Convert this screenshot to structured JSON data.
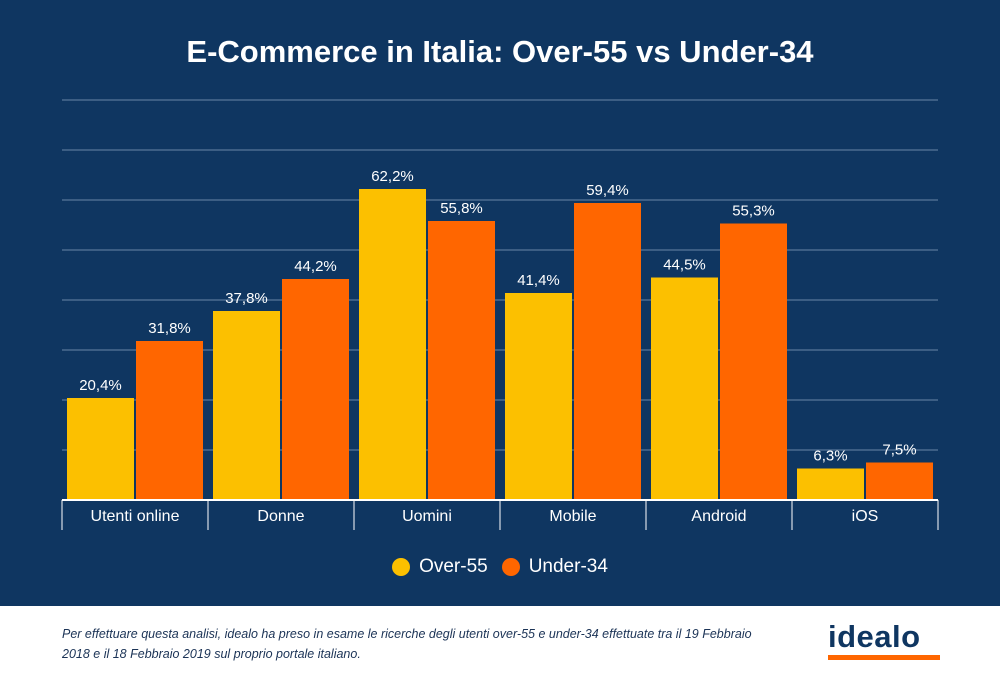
{
  "title": "E-Commerce in Italia: Over-55 vs Under-34",
  "chart_data": {
    "type": "bar",
    "title": "E-Commerce in Italia: Over-55 vs Under-34",
    "categories": [
      "Utenti online",
      "Donne",
      "Uomini",
      "Mobile",
      "Android",
      "iOS"
    ],
    "series": [
      {
        "name": "Over-55",
        "values": [
          20.4,
          37.8,
          62.2,
          41.4,
          44.5,
          6.3
        ],
        "labels": [
          "20,4%",
          "37,8%",
          "62,2%",
          "41,4%",
          "44,5%",
          "6,3%"
        ],
        "color": "#fcc000"
      },
      {
        "name": "Under-34",
        "values": [
          31.8,
          44.2,
          55.8,
          59.4,
          55.3,
          7.5
        ],
        "labels": [
          "31,8%",
          "44,2%",
          "55,8%",
          "59,4%",
          "55,3%",
          "7,5%"
        ],
        "color": "#ff6600"
      }
    ],
    "ylim": [
      0,
      80
    ],
    "y_gridlines": [
      10,
      20,
      30,
      40,
      50,
      60,
      70,
      80
    ],
    "grid": true,
    "y_tick_labels": false,
    "legend_placement": "bottom-center",
    "xlabel": "",
    "ylabel": ""
  },
  "colors": {
    "background": "#0f3661",
    "gridline": "#6a86a6",
    "axis": "#ffffff",
    "over55": "#fcc000",
    "under34": "#ff6600"
  },
  "footnote": "Per effettuare questa analisi, idealo ha preso in esame le ricerche degli utenti over-55 e under-34 effettuate tra il 19 Febbraio 2018 e il 18 Febbraio 2019 sul proprio portale italiano.",
  "logo": {
    "text": "idealo",
    "accent_color": "#ff6600"
  }
}
